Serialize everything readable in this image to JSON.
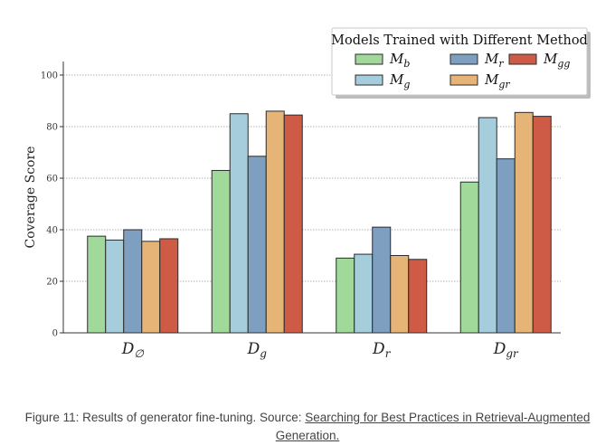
{
  "chart_data": {
    "type": "bar",
    "ylabel": "Coverage Score",
    "ylim": [
      0,
      100
    ],
    "yticks": [
      0,
      20,
      40,
      60,
      80,
      100
    ],
    "grid": true,
    "categories": [
      {
        "base": "D",
        "sub": "∅"
      },
      {
        "base": "D",
        "sub": "g"
      },
      {
        "base": "D",
        "sub": "r"
      },
      {
        "base": "D",
        "sub": "gr"
      }
    ],
    "legend": {
      "title": "Models Trained with Different Method",
      "placement": "top-right"
    },
    "series": [
      {
        "base": "M",
        "sub": "b",
        "color": "#a1d99b",
        "values": [
          37.5,
          63,
          29,
          58.5
        ]
      },
      {
        "base": "M",
        "sub": "g",
        "color": "#a6cddb",
        "values": [
          36,
          85,
          30.5,
          83.5
        ]
      },
      {
        "base": "M",
        "sub": "r",
        "color": "#7f9fc1",
        "values": [
          40,
          68.5,
          41,
          67.5
        ]
      },
      {
        "base": "M",
        "sub": "gr",
        "color": "#e6b476",
        "values": [
          35.5,
          86,
          30,
          85.5
        ]
      },
      {
        "base": "M",
        "sub": "gg",
        "color": "#ce5b45",
        "values": [
          36.5,
          84.5,
          28.5,
          84
        ]
      }
    ]
  },
  "caption": {
    "prefix": "Figure 11: Results of generator fine-tuning. Source: ",
    "link_text": "Searching for Best Practices in Retrieval-Augmented Generation."
  }
}
